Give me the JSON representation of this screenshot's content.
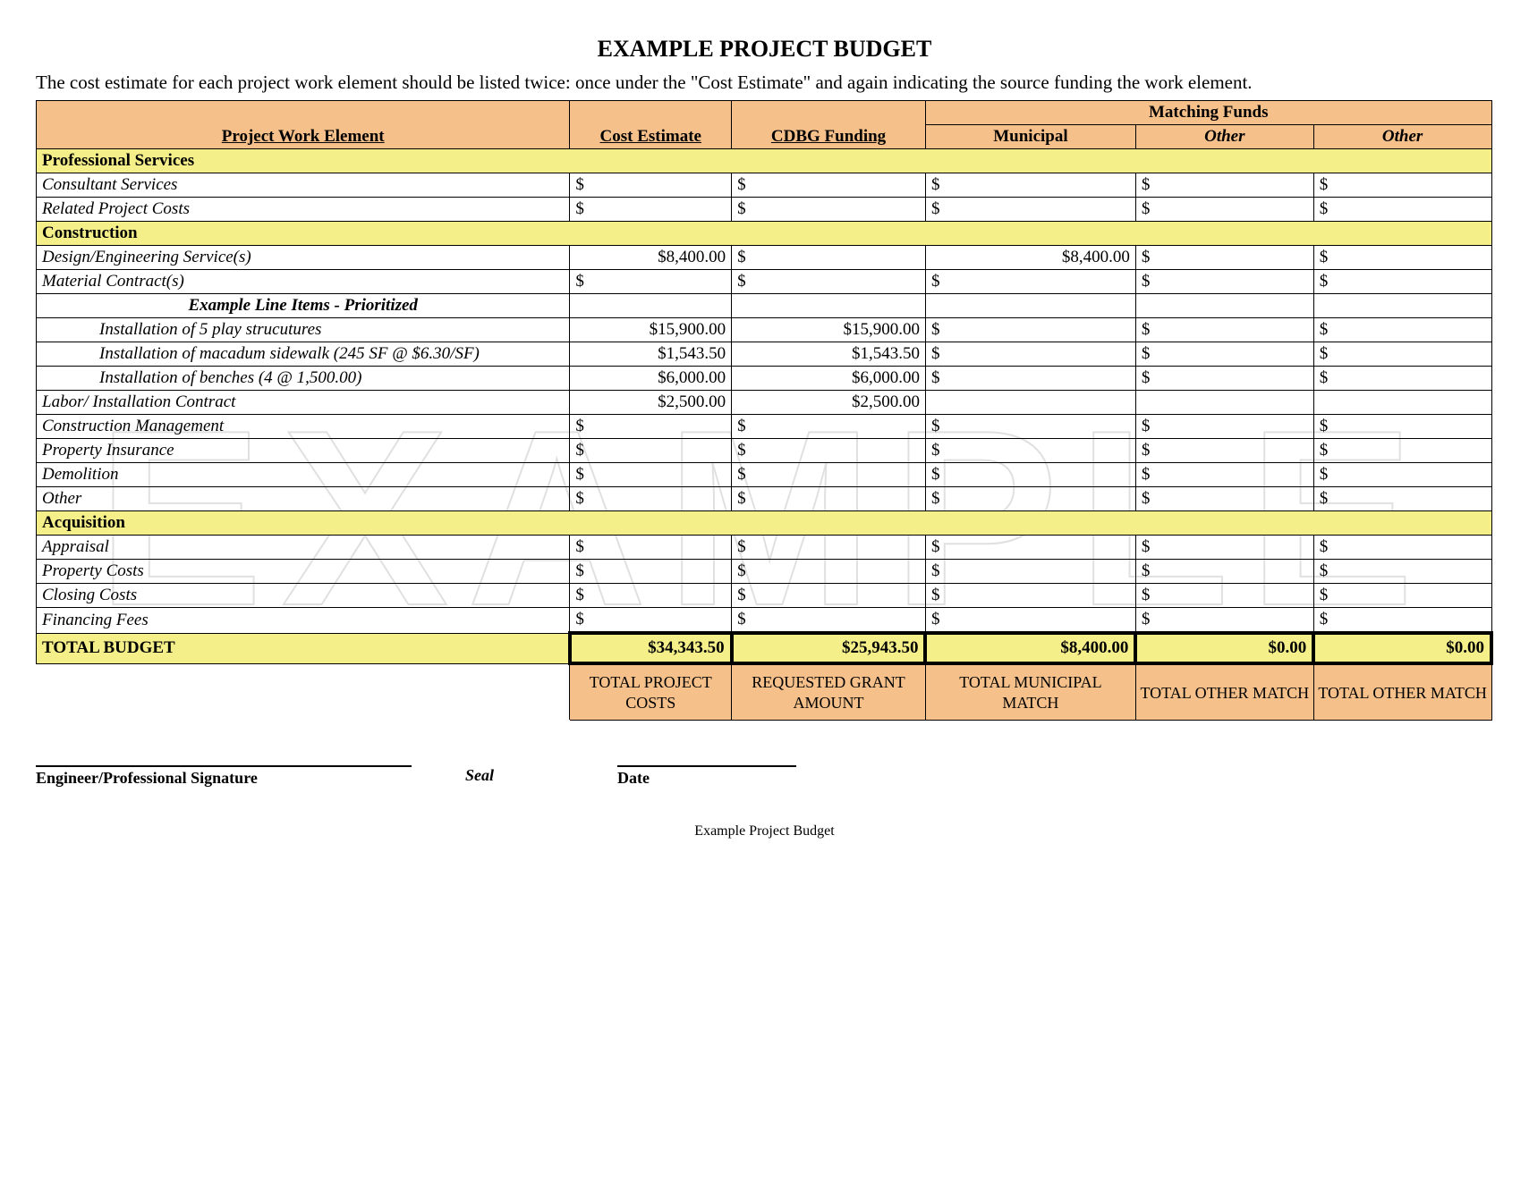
{
  "title": "EXAMPLE PROJECT BUDGET",
  "intro": "The cost estimate for each project work element should be listed twice: once under the \"Cost Estimate\" and again indicating the source funding the work element.",
  "watermark": "EXAMPLE",
  "colors": {
    "header_bg": "#f5c08a",
    "section_bg": "#f5ef8a",
    "border": "#000000",
    "text": "#000000",
    "page_bg": "#ffffff"
  },
  "headers": {
    "col1": "Project Work Element",
    "col2": "Cost Estimate",
    "col3": "CDBG   Funding",
    "matching_funds": "Matching Funds",
    "col4": "Municipal",
    "col5": "Other",
    "col6": "Other"
  },
  "sections": [
    {
      "name": "Professional Services",
      "rows": [
        {
          "label": "Consultant Services",
          "cost": "$",
          "cdbg": "$",
          "muni": "$",
          "other1": "$",
          "other2": "$",
          "italic": true
        },
        {
          "label": "Related Project Costs",
          "cost": "$",
          "cdbg": "$",
          "muni": "$",
          "other1": "$",
          "other2": "$",
          "italic": true
        }
      ]
    },
    {
      "name": "Construction",
      "rows": [
        {
          "label": "Design/Engineering Service(s)",
          "cost": "$8,400.00",
          "cdbg": "$",
          "muni": "$8,400.00",
          "other1": "$",
          "other2": "$",
          "italic": true,
          "money_cost": true,
          "money_muni": true
        },
        {
          "label": "Material Contract(s)",
          "cost": "$",
          "cdbg": "$",
          "muni": "$",
          "other1": "$",
          "other2": "$",
          "italic": true
        },
        {
          "label": "Example Line Items - Prioritized",
          "subheader": true
        },
        {
          "label": "Installation of 5 play strucutures",
          "cost": "$15,900.00",
          "cdbg": "$15,900.00",
          "muni": "$",
          "other1": "$",
          "other2": "$",
          "italic": true,
          "indent": true,
          "money_cost": true,
          "money_cdbg": true
        },
        {
          "label": "Installation of macadum sidewalk (245 SF @ $6.30/SF)",
          "cost": "$1,543.50",
          "cdbg": "$1,543.50",
          "muni": "$",
          "other1": "$",
          "other2": "$",
          "italic": true,
          "indent": true,
          "money_cost": true,
          "money_cdbg": true
        },
        {
          "label": "Installation of benches (4 @ 1,500.00)",
          "cost": "$6,000.00",
          "cdbg": "$6,000.00",
          "muni": "$",
          "other1": "$",
          "other2": "$",
          "italic": true,
          "indent": true,
          "money_cost": true,
          "money_cdbg": true
        },
        {
          "label": "Labor/ Installation Contract",
          "cost": "$2,500.00",
          "cdbg": "$2,500.00",
          "muni": "",
          "other1": "",
          "other2": "",
          "italic": true,
          "money_cost": true,
          "money_cdbg": true
        },
        {
          "label": "Construction Management",
          "cost": "$",
          "cdbg": "$",
          "muni": "$",
          "other1": "$",
          "other2": "$",
          "italic": true
        },
        {
          "label": "Property Insurance",
          "cost": "$",
          "cdbg": "$",
          "muni": "$",
          "other1": "$",
          "other2": "$",
          "italic": true
        },
        {
          "label": "Demolition",
          "cost": "$",
          "cdbg": "$",
          "muni": "$",
          "other1": "$",
          "other2": "$",
          "italic": true
        },
        {
          "label": "Other",
          "cost": "$",
          "cdbg": "$",
          "muni": "$",
          "other1": "$",
          "other2": "$",
          "italic": true
        }
      ]
    },
    {
      "name": "Acquisition",
      "rows": [
        {
          "label": "Appraisal",
          "cost": "$",
          "cdbg": "$",
          "muni": "$",
          "other1": "$",
          "other2": "$",
          "italic": true
        },
        {
          "label": "Property Costs",
          "cost": "$",
          "cdbg": "$",
          "muni": "$",
          "other1": "$",
          "other2": "$",
          "italic": true
        },
        {
          "label": "Closing Costs",
          "cost": "$",
          "cdbg": "$",
          "muni": "$",
          "other1": "$",
          "other2": "$",
          "italic": true
        },
        {
          "label": "Financing Fees",
          "cost": "$",
          "cdbg": "$",
          "muni": "$",
          "other1": "$",
          "other2": "$",
          "italic": true
        }
      ]
    }
  ],
  "totals": {
    "label": "TOTAL BUDGET",
    "cost": "$34,343.50",
    "cdbg": "$25,943.50",
    "muni": "$8,400.00",
    "other1": "$0.00",
    "other2": "$0.00"
  },
  "footer_labels": {
    "cost": "TOTAL PROJECT COSTS",
    "cdbg": "REQUESTED GRANT AMOUNT",
    "muni": "TOTAL MUNICIPAL MATCH",
    "other1": "TOTAL OTHER MATCH",
    "other2": "TOTAL OTHER MATCH"
  },
  "signatures": {
    "engineer": "Engineer/Professional Signature",
    "seal": "Seal",
    "date": "Date"
  },
  "page_footer": "Example Project Budget",
  "column_widths_pct": [
    31,
    10,
    12,
    12,
    10,
    10
  ]
}
